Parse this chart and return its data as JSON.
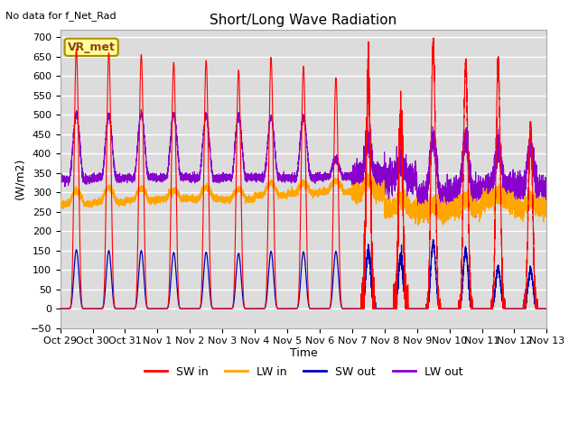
{
  "title": "Short/Long Wave Radiation",
  "xlabel": "Time",
  "ylabel": "(W/m2)",
  "topleft_note": "No data for f_Net_Rad",
  "legend_label": "VR_met",
  "ylim": [
    -50,
    720
  ],
  "yticks": [
    -50,
    0,
    50,
    100,
    150,
    200,
    250,
    300,
    350,
    400,
    450,
    500,
    550,
    600,
    650,
    700
  ],
  "x_tick_labels": [
    "Oct 29",
    "Oct 30",
    "Oct 31",
    "Nov 1",
    "Nov 2",
    "Nov 3",
    "Nov 4",
    "Nov 5",
    "Nov 6",
    "Nov 7",
    "Nov 8",
    "Nov 9",
    "Nov 10",
    "Nov 11",
    "Nov 12",
    "Nov 13"
  ],
  "sw_in_color": "#ff0000",
  "lw_in_color": "#ffa500",
  "sw_out_color": "#0000bb",
  "lw_out_color": "#8800cc",
  "bg_color": "#dcdcdc",
  "grid_color": "#ffffff",
  "n_days": 15,
  "sw_in_peaks": [
    670,
    660,
    655,
    635,
    640,
    615,
    648,
    625,
    595,
    600,
    495,
    680,
    635,
    625,
    470
  ],
  "sw_out_peaks": [
    152,
    150,
    150,
    145,
    146,
    143,
    148,
    147,
    148,
    148,
    130,
    170,
    148,
    105,
    100
  ],
  "lw_in_base": [
    270,
    275,
    280,
    283,
    283,
    282,
    293,
    298,
    302,
    298,
    255,
    248,
    260,
    275,
    258
  ],
  "lw_in_day_bump": [
    35,
    38,
    30,
    22,
    30,
    25,
    30,
    25,
    28,
    30,
    28,
    18,
    20,
    22,
    20
  ],
  "lw_out_base": [
    333,
    336,
    338,
    338,
    336,
    338,
    338,
    338,
    340,
    340,
    336,
    288,
    300,
    312,
    312
  ],
  "lw_out_peaks": [
    500,
    500,
    503,
    502,
    498,
    496,
    495,
    493,
    385,
    430,
    380,
    440,
    436,
    413,
    413
  ],
  "figsize": [
    6.4,
    4.8
  ],
  "dpi": 100
}
